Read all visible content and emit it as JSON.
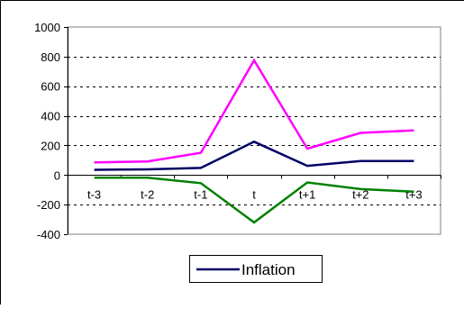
{
  "chart_data": {
    "type": "line",
    "categories": [
      "t-3",
      "t-2",
      "t-1",
      "t",
      "t+1",
      "t+2",
      "t+3"
    ],
    "ylim": [
      -400,
      1000
    ],
    "yticks": [
      -400,
      -200,
      0,
      200,
      400,
      600,
      800,
      1000
    ],
    "ytick_labels": [
      "-400",
      "-200",
      "0",
      "200",
      "400",
      "600",
      "800",
      "1000"
    ],
    "grid": "horizontal-dashed",
    "legend_position": "bottom",
    "series": [
      {
        "name": "Inflation",
        "color": "#000066",
        "values": [
          35,
          38,
          48,
          225,
          62,
          95,
          95
        ]
      },
      {
        "color": "#FF00FF",
        "values": [
          85,
          92,
          150,
          775,
          178,
          285,
          302
        ]
      },
      {
        "color": "#008000",
        "values": [
          -18,
          -18,
          -55,
          -320,
          -50,
          -95,
          -112
        ]
      }
    ],
    "legend": [
      {
        "series_index": 0,
        "label": "Inflation"
      }
    ]
  }
}
